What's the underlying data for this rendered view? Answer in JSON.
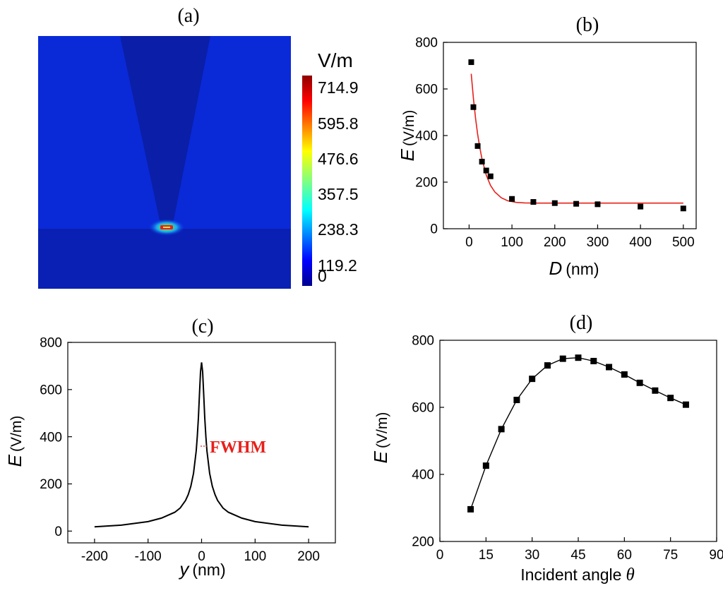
{
  "panels": {
    "a": {
      "label": "(a)",
      "unit": "V/m",
      "ticks": [
        "714.9",
        "595.8",
        "476.6",
        "357.5",
        "238.3",
        "119.2",
        "0"
      ]
    },
    "b": {
      "label": "(b)"
    },
    "c": {
      "label": "(c)",
      "annotation": "FWHM"
    },
    "d": {
      "label": "(d)"
    }
  },
  "chart_data": [
    {
      "type": "heatmap",
      "title": "(a)",
      "colorbar_label": "V/m",
      "colorbar_range": [
        0,
        714.9
      ],
      "colorbar_ticks": [
        714.9,
        595.8,
        476.6,
        357.5,
        238.3,
        119.2,
        0
      ],
      "colors": {
        "background": "#0a2ad8",
        "substrate": "#0a20b4",
        "tip": "#0a1aa6",
        "hotspot": "#e8201a"
      }
    },
    {
      "type": "scatter",
      "title": "(b)",
      "xlabel_var": "D",
      "xlabel_unit": "(nm)",
      "ylabel_var": "E",
      "ylabel_unit": "(V/m)",
      "xlim": [
        -60,
        530
      ],
      "ylim": [
        0,
        800
      ],
      "xticks": [
        0,
        100,
        200,
        300,
        400,
        500
      ],
      "yticks": [
        0,
        200,
        400,
        600,
        800
      ],
      "points": {
        "x": [
          5,
          10,
          20,
          30,
          40,
          50,
          100,
          150,
          200,
          250,
          300,
          400,
          500
        ],
        "y": [
          715,
          522,
          355,
          288,
          250,
          225,
          128,
          115,
          110,
          107,
          105,
          95,
          87
        ]
      },
      "fit": {
        "color": "#e8201a",
        "x": [
          5,
          10,
          15,
          20,
          25,
          30,
          40,
          50,
          60,
          75,
          90,
          110,
          130,
          160,
          200,
          300,
          400,
          500
        ],
        "y": [
          665,
          560,
          475,
          405,
          348,
          300,
          230,
          186,
          158,
          133,
          120,
          113,
          111,
          110,
          110,
          110,
          110,
          110
        ]
      }
    },
    {
      "type": "line",
      "title": "(c)",
      "xlabel_var": "y",
      "xlabel_unit": "(nm)",
      "ylabel_var": "E",
      "ylabel_unit": "(V/m)",
      "xlim": [
        -250,
        250
      ],
      "ylim": [
        -50,
        800
      ],
      "xticks": [
        -200,
        -100,
        0,
        100,
        200
      ],
      "yticks": [
        0,
        200,
        400,
        600,
        800
      ],
      "series": [
        {
          "color": "#000000",
          "x": [
            -200,
            -150,
            -100,
            -75,
            -50,
            -40,
            -30,
            -25,
            -20,
            -15,
            -10,
            -8,
            -6,
            -4,
            -2,
            0,
            2,
            4,
            6,
            8,
            10,
            15,
            20,
            25,
            30,
            40,
            50,
            75,
            100,
            150,
            200
          ],
          "y": [
            18,
            25,
            40,
            55,
            80,
            98,
            130,
            155,
            190,
            245,
            340,
            400,
            480,
            580,
            675,
            715,
            675,
            580,
            480,
            400,
            340,
            245,
            190,
            155,
            130,
            98,
            80,
            55,
            40,
            25,
            18
          ]
        }
      ],
      "annotation": {
        "text": "FWHM",
        "y": 360,
        "x_from": -2,
        "x_to": 10,
        "color": "#e8201a"
      }
    },
    {
      "type": "line",
      "title": "(d)",
      "xlabel": "Incident angle",
      "xlabel_symbol": "θ",
      "ylabel_var": "E",
      "ylabel_unit": "(V/m)",
      "xlim": [
        0,
        90
      ],
      "ylim": [
        200,
        800
      ],
      "xticks": [
        0,
        15,
        30,
        45,
        60,
        75,
        90
      ],
      "yticks": [
        200,
        400,
        600,
        800
      ],
      "series": [
        {
          "color": "#000000",
          "markers": true,
          "x": [
            10,
            15,
            20,
            25,
            30,
            35,
            40,
            45,
            50,
            55,
            60,
            65,
            70,
            75,
            80
          ],
          "y": [
            296,
            426,
            535,
            622,
            685,
            725,
            745,
            748,
            738,
            720,
            698,
            673,
            650,
            628,
            608
          ]
        }
      ]
    }
  ]
}
